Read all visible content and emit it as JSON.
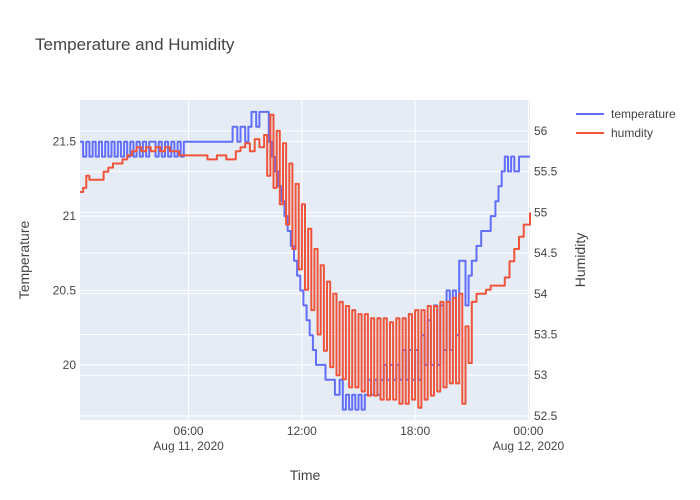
{
  "chart_data": {
    "type": "line",
    "title": "Temperature and Humidity",
    "xlabel": "Time",
    "ylabel": "Temperature",
    "y2label": "Humidity",
    "x_range": [
      "2020-08-11 00:15",
      "2020-08-12 00:05"
    ],
    "ylim": [
      19.63,
      21.78
    ],
    "y2lim": [
      52.45,
      56.38
    ],
    "x_ticks": [
      {
        "t": "2020-08-11 06:00",
        "label": "06:00",
        "sublabel": "Aug 11, 2020"
      },
      {
        "t": "2020-08-11 12:00",
        "label": "12:00",
        "sublabel": ""
      },
      {
        "t": "2020-08-11 18:00",
        "label": "18:00",
        "sublabel": ""
      },
      {
        "t": "2020-08-12 00:00",
        "label": "00:00",
        "sublabel": "Aug 12, 2020"
      }
    ],
    "y_ticks": [
      20,
      20.5,
      21,
      21.5
    ],
    "y2_ticks": [
      52.5,
      53,
      53.5,
      54,
      54.5,
      55,
      55.5,
      56
    ],
    "grid": true,
    "legend_position": "top-right",
    "series": [
      {
        "name": "temperature",
        "axis": "y",
        "color": "#636efa",
        "points": [
          [
            "2020-08-11 00:15",
            21.5
          ],
          [
            "2020-08-11 00:25",
            21.4
          ],
          [
            "2020-08-11 00:35",
            21.5
          ],
          [
            "2020-08-11 00:45",
            21.4
          ],
          [
            "2020-08-11 00:55",
            21.5
          ],
          [
            "2020-08-11 01:05",
            21.4
          ],
          [
            "2020-08-11 01:15",
            21.5
          ],
          [
            "2020-08-11 01:25",
            21.4
          ],
          [
            "2020-08-11 01:35",
            21.5
          ],
          [
            "2020-08-11 01:45",
            21.4
          ],
          [
            "2020-08-11 01:55",
            21.5
          ],
          [
            "2020-08-11 02:05",
            21.4
          ],
          [
            "2020-08-11 02:15",
            21.5
          ],
          [
            "2020-08-11 02:25",
            21.4
          ],
          [
            "2020-08-11 02:35",
            21.5
          ],
          [
            "2020-08-11 02:45",
            21.4
          ],
          [
            "2020-08-11 02:55",
            21.5
          ],
          [
            "2020-08-11 03:05",
            21.4
          ],
          [
            "2020-08-11 03:15",
            21.5
          ],
          [
            "2020-08-11 03:25",
            21.4
          ],
          [
            "2020-08-11 03:35",
            21.5
          ],
          [
            "2020-08-11 03:45",
            21.4
          ],
          [
            "2020-08-11 03:55",
            21.5
          ],
          [
            "2020-08-11 04:05",
            21.5
          ],
          [
            "2020-08-11 04:15",
            21.4
          ],
          [
            "2020-08-11 04:25",
            21.5
          ],
          [
            "2020-08-11 04:35",
            21.4
          ],
          [
            "2020-08-11 04:45",
            21.5
          ],
          [
            "2020-08-11 04:55",
            21.4
          ],
          [
            "2020-08-11 05:05",
            21.5
          ],
          [
            "2020-08-11 05:15",
            21.4
          ],
          [
            "2020-08-11 05:25",
            21.5
          ],
          [
            "2020-08-11 05:35",
            21.4
          ],
          [
            "2020-08-11 05:45",
            21.5
          ],
          [
            "2020-08-11 06:00",
            21.5
          ],
          [
            "2020-08-11 06:30",
            21.5
          ],
          [
            "2020-08-11 07:00",
            21.5
          ],
          [
            "2020-08-11 07:30",
            21.5
          ],
          [
            "2020-08-11 08:00",
            21.5
          ],
          [
            "2020-08-11 08:15",
            21.5
          ],
          [
            "2020-08-11 08:20",
            21.6
          ],
          [
            "2020-08-11 08:35",
            21.5
          ],
          [
            "2020-08-11 08:45",
            21.6
          ],
          [
            "2020-08-11 09:00",
            21.5
          ],
          [
            "2020-08-11 09:10",
            21.6
          ],
          [
            "2020-08-11 09:20",
            21.7
          ],
          [
            "2020-08-11 09:35",
            21.6
          ],
          [
            "2020-08-11 09:45",
            21.7
          ],
          [
            "2020-08-11 10:05",
            21.7
          ],
          [
            "2020-08-11 10:15",
            21.5
          ],
          [
            "2020-08-11 10:25",
            21.4
          ],
          [
            "2020-08-11 10:35",
            21.3
          ],
          [
            "2020-08-11 10:45",
            21.2
          ],
          [
            "2020-08-11 10:55",
            21.1
          ],
          [
            "2020-08-11 11:05",
            21.0
          ],
          [
            "2020-08-11 11:15",
            20.9
          ],
          [
            "2020-08-11 11:25",
            20.8
          ],
          [
            "2020-08-11 11:35",
            20.7
          ],
          [
            "2020-08-11 11:45",
            20.6
          ],
          [
            "2020-08-11 11:55",
            20.5
          ],
          [
            "2020-08-11 12:05",
            20.4
          ],
          [
            "2020-08-11 12:15",
            20.3
          ],
          [
            "2020-08-11 12:25",
            20.2
          ],
          [
            "2020-08-11 12:35",
            20.1
          ],
          [
            "2020-08-11 12:45",
            20.0
          ],
          [
            "2020-08-11 13:00",
            20.0
          ],
          [
            "2020-08-11 13:15",
            19.9
          ],
          [
            "2020-08-11 13:30",
            19.9
          ],
          [
            "2020-08-11 13:45",
            19.8
          ],
          [
            "2020-08-11 14:00",
            19.9
          ],
          [
            "2020-08-11 14:10",
            19.7
          ],
          [
            "2020-08-11 14:20",
            19.8
          ],
          [
            "2020-08-11 14:30",
            19.7
          ],
          [
            "2020-08-11 14:40",
            19.8
          ],
          [
            "2020-08-11 14:50",
            19.7
          ],
          [
            "2020-08-11 15:00",
            19.8
          ],
          [
            "2020-08-11 15:10",
            19.7
          ],
          [
            "2020-08-11 15:20",
            19.8
          ],
          [
            "2020-08-11 15:30",
            19.9
          ],
          [
            "2020-08-11 15:40",
            19.8
          ],
          [
            "2020-08-11 15:50",
            19.9
          ],
          [
            "2020-08-11 16:00",
            19.8
          ],
          [
            "2020-08-11 16:10",
            19.9
          ],
          [
            "2020-08-11 16:20",
            20.0
          ],
          [
            "2020-08-11 16:30",
            19.9
          ],
          [
            "2020-08-11 16:40",
            20.0
          ],
          [
            "2020-08-11 16:50",
            19.9
          ],
          [
            "2020-08-11 17:00",
            20.0
          ],
          [
            "2020-08-11 17:10",
            19.9
          ],
          [
            "2020-08-11 17:20",
            20.1
          ],
          [
            "2020-08-11 17:30",
            19.9
          ],
          [
            "2020-08-11 17:40",
            20.1
          ],
          [
            "2020-08-11 17:50",
            19.9
          ],
          [
            "2020-08-11 18:00",
            20.1
          ],
          [
            "2020-08-11 18:10",
            19.9
          ],
          [
            "2020-08-11 18:20",
            20.2
          ],
          [
            "2020-08-11 18:30",
            20.0
          ],
          [
            "2020-08-11 18:40",
            20.3
          ],
          [
            "2020-08-11 18:50",
            20.0
          ],
          [
            "2020-08-11 19:00",
            20.4
          ],
          [
            "2020-08-11 19:10",
            20.0
          ],
          [
            "2020-08-11 19:20",
            20.4
          ],
          [
            "2020-08-11 19:30",
            20.1
          ],
          [
            "2020-08-11 19:40",
            20.5
          ],
          [
            "2020-08-11 19:50",
            20.1
          ],
          [
            "2020-08-11 20:00",
            20.5
          ],
          [
            "2020-08-11 20:10",
            20.2
          ],
          [
            "2020-08-11 20:20",
            20.7
          ],
          [
            "2020-08-11 20:30",
            20.7
          ],
          [
            "2020-08-11 20:40",
            20.4
          ],
          [
            "2020-08-11 20:50",
            20.6
          ],
          [
            "2020-08-11 21:00",
            20.7
          ],
          [
            "2020-08-11 21:15",
            20.8
          ],
          [
            "2020-08-11 21:30",
            20.9
          ],
          [
            "2020-08-11 21:45",
            20.9
          ],
          [
            "2020-08-11 22:00",
            21.0
          ],
          [
            "2020-08-11 22:15",
            21.1
          ],
          [
            "2020-08-11 22:25",
            21.2
          ],
          [
            "2020-08-11 22:35",
            21.3
          ],
          [
            "2020-08-11 22:45",
            21.4
          ],
          [
            "2020-08-11 22:55",
            21.3
          ],
          [
            "2020-08-11 23:05",
            21.4
          ],
          [
            "2020-08-11 23:15",
            21.3
          ],
          [
            "2020-08-11 23:30",
            21.4
          ],
          [
            "2020-08-11 23:45",
            21.4
          ],
          [
            "2020-08-12 00:05",
            21.4
          ]
        ]
      },
      {
        "name": "humdity",
        "axis": "y2",
        "color": "#ef553b",
        "points": [
          [
            "2020-08-11 00:15",
            55.25
          ],
          [
            "2020-08-11 00:25",
            55.3
          ],
          [
            "2020-08-11 00:35",
            55.45
          ],
          [
            "2020-08-11 00:45",
            55.4
          ],
          [
            "2020-08-11 01:00",
            55.4
          ],
          [
            "2020-08-11 01:15",
            55.4
          ],
          [
            "2020-08-11 01:30",
            55.5
          ],
          [
            "2020-08-11 01:45",
            55.55
          ],
          [
            "2020-08-11 02:00",
            55.6
          ],
          [
            "2020-08-11 02:15",
            55.6
          ],
          [
            "2020-08-11 02:30",
            55.65
          ],
          [
            "2020-08-11 02:45",
            55.7
          ],
          [
            "2020-08-11 03:00",
            55.75
          ],
          [
            "2020-08-11 03:15",
            55.8
          ],
          [
            "2020-08-11 03:30",
            55.75
          ],
          [
            "2020-08-11 03:45",
            55.8
          ],
          [
            "2020-08-11 04:00",
            55.75
          ],
          [
            "2020-08-11 04:15",
            55.8
          ],
          [
            "2020-08-11 04:30",
            55.75
          ],
          [
            "2020-08-11 04:45",
            55.8
          ],
          [
            "2020-08-11 05:00",
            55.75
          ],
          [
            "2020-08-11 05:15",
            55.75
          ],
          [
            "2020-08-11 05:30",
            55.7
          ],
          [
            "2020-08-11 06:00",
            55.7
          ],
          [
            "2020-08-11 06:30",
            55.7
          ],
          [
            "2020-08-11 07:00",
            55.65
          ],
          [
            "2020-08-11 07:30",
            55.7
          ],
          [
            "2020-08-11 08:00",
            55.65
          ],
          [
            "2020-08-11 08:30",
            55.75
          ],
          [
            "2020-08-11 08:45",
            55.8
          ],
          [
            "2020-08-11 09:00",
            55.85
          ],
          [
            "2020-08-11 09:15",
            55.75
          ],
          [
            "2020-08-11 09:30",
            55.9
          ],
          [
            "2020-08-11 09:45",
            55.8
          ],
          [
            "2020-08-11 10:00",
            55.95
          ],
          [
            "2020-08-11 10:10",
            55.45
          ],
          [
            "2020-08-11 10:20",
            56.2
          ],
          [
            "2020-08-11 10:30",
            55.3
          ],
          [
            "2020-08-11 10:40",
            56.0
          ],
          [
            "2020-08-11 10:50",
            55.1
          ],
          [
            "2020-08-11 11:00",
            55.85
          ],
          [
            "2020-08-11 11:10",
            54.85
          ],
          [
            "2020-08-11 11:20",
            55.6
          ],
          [
            "2020-08-11 11:30",
            54.55
          ],
          [
            "2020-08-11 11:40",
            55.35
          ],
          [
            "2020-08-11 11:50",
            54.3
          ],
          [
            "2020-08-11 12:00",
            55.1
          ],
          [
            "2020-08-11 12:10",
            54.05
          ],
          [
            "2020-08-11 12:20",
            54.8
          ],
          [
            "2020-08-11 12:30",
            53.8
          ],
          [
            "2020-08-11 12:40",
            54.55
          ],
          [
            "2020-08-11 12:50",
            53.5
          ],
          [
            "2020-08-11 13:00",
            54.35
          ],
          [
            "2020-08-11 13:10",
            53.3
          ],
          [
            "2020-08-11 13:20",
            54.15
          ],
          [
            "2020-08-11 13:30",
            53.1
          ],
          [
            "2020-08-11 13:40",
            54.0
          ],
          [
            "2020-08-11 13:50",
            53.0
          ],
          [
            "2020-08-11 14:00",
            53.9
          ],
          [
            "2020-08-11 14:10",
            52.95
          ],
          [
            "2020-08-11 14:20",
            53.85
          ],
          [
            "2020-08-11 14:30",
            52.85
          ],
          [
            "2020-08-11 14:40",
            53.8
          ],
          [
            "2020-08-11 14:50",
            52.85
          ],
          [
            "2020-08-11 15:00",
            53.75
          ],
          [
            "2020-08-11 15:10",
            52.8
          ],
          [
            "2020-08-11 15:20",
            53.75
          ],
          [
            "2020-08-11 15:30",
            52.75
          ],
          [
            "2020-08-11 15:40",
            53.7
          ],
          [
            "2020-08-11 15:50",
            52.75
          ],
          [
            "2020-08-11 16:00",
            53.7
          ],
          [
            "2020-08-11 16:10",
            52.7
          ],
          [
            "2020-08-11 16:20",
            53.7
          ],
          [
            "2020-08-11 16:30",
            52.7
          ],
          [
            "2020-08-11 16:40",
            53.65
          ],
          [
            "2020-08-11 16:50",
            52.7
          ],
          [
            "2020-08-11 17:00",
            53.7
          ],
          [
            "2020-08-11 17:10",
            52.65
          ],
          [
            "2020-08-11 17:20",
            53.7
          ],
          [
            "2020-08-11 17:30",
            52.65
          ],
          [
            "2020-08-11 17:40",
            53.75
          ],
          [
            "2020-08-11 17:50",
            52.7
          ],
          [
            "2020-08-11 18:00",
            53.8
          ],
          [
            "2020-08-11 18:10",
            52.6
          ],
          [
            "2020-08-11 18:20",
            53.8
          ],
          [
            "2020-08-11 18:30",
            52.7
          ],
          [
            "2020-08-11 18:40",
            53.85
          ],
          [
            "2020-08-11 18:50",
            52.75
          ],
          [
            "2020-08-11 19:00",
            53.85
          ],
          [
            "2020-08-11 19:10",
            52.8
          ],
          [
            "2020-08-11 19:20",
            53.9
          ],
          [
            "2020-08-11 19:30",
            52.85
          ],
          [
            "2020-08-11 19:40",
            53.9
          ],
          [
            "2020-08-11 19:50",
            52.9
          ],
          [
            "2020-08-11 20:00",
            53.95
          ],
          [
            "2020-08-11 20:10",
            52.9
          ],
          [
            "2020-08-11 20:20",
            54.0
          ],
          [
            "2020-08-11 20:30",
            52.65
          ],
          [
            "2020-08-11 20:40",
            53.6
          ],
          [
            "2020-08-11 20:50",
            53.15
          ],
          [
            "2020-08-11 21:00",
            53.9
          ],
          [
            "2020-08-11 21:15",
            54.0
          ],
          [
            "2020-08-11 21:30",
            54.0
          ],
          [
            "2020-08-11 21:45",
            54.05
          ],
          [
            "2020-08-11 22:00",
            54.1
          ],
          [
            "2020-08-11 22:15",
            54.1
          ],
          [
            "2020-08-11 22:30",
            54.1
          ],
          [
            "2020-08-11 22:45",
            54.2
          ],
          [
            "2020-08-11 23:00",
            54.4
          ],
          [
            "2020-08-11 23:15",
            54.55
          ],
          [
            "2020-08-11 23:30",
            54.7
          ],
          [
            "2020-08-11 23:45",
            54.85
          ],
          [
            "2020-08-12 00:05",
            55.0
          ]
        ]
      }
    ]
  }
}
